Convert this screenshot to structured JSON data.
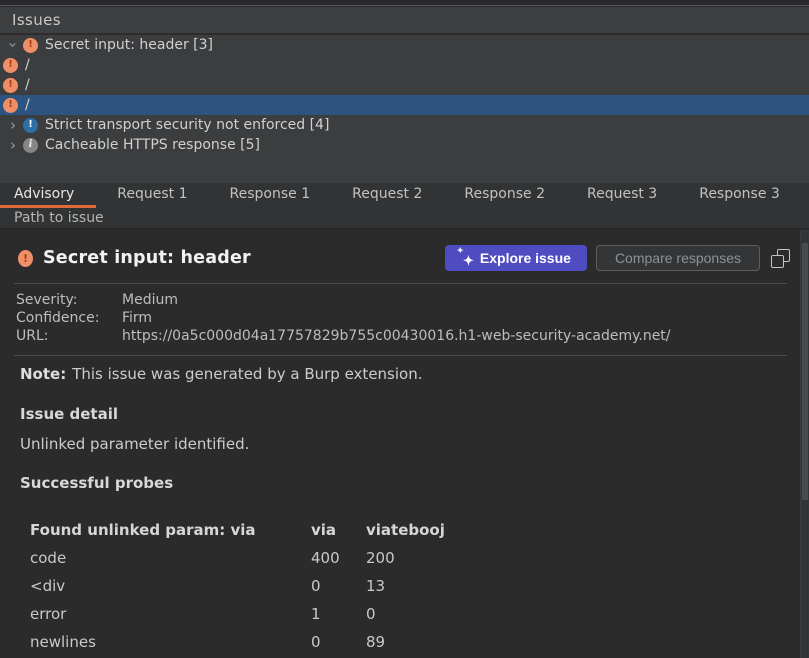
{
  "panel": {
    "title": "Issues"
  },
  "tree": {
    "items": [
      {
        "label": "Secret input: header [3]",
        "icon": "medium-severity-icon",
        "chevron": "expanded",
        "selected": false
      },
      {
        "label": "/",
        "icon": "medium-severity-icon",
        "selected": false
      },
      {
        "label": "/",
        "icon": "medium-severity-icon",
        "selected": false
      },
      {
        "label": "/",
        "icon": "medium-severity-icon",
        "selected": true
      },
      {
        "label": "Strict transport security not enforced [4]",
        "icon": "low-severity-icon",
        "chevron": "collapsed",
        "selected": false
      },
      {
        "label": "Cacheable HTTPS response [5]",
        "icon": "info-severity-icon",
        "chevron": "collapsed",
        "selected": false
      }
    ]
  },
  "tabs": {
    "row1": [
      {
        "label": "Advisory",
        "selected": true
      },
      {
        "label": "Request 1",
        "selected": false
      },
      {
        "label": "Response 1",
        "selected": false
      },
      {
        "label": "Request 2",
        "selected": false
      },
      {
        "label": "Response 2",
        "selected": false
      },
      {
        "label": "Request 3",
        "selected": false
      },
      {
        "label": "Response 3",
        "selected": false
      }
    ],
    "row2": [
      {
        "label": "Path to issue"
      }
    ]
  },
  "advisory": {
    "title": "Secret input: header",
    "explore_button": "Explore issue",
    "compare_button": "Compare responses",
    "meta": [
      {
        "label": "Severity:",
        "value": "Medium"
      },
      {
        "label": "Confidence:",
        "value": "Firm"
      },
      {
        "label": "URL:",
        "value": "https://0a5c000d04a17757829b755c00430016.h1-web-security-academy.net/"
      }
    ],
    "note_label": "Note:",
    "note_text": "This issue was generated by a Burp extension.",
    "issue_detail_heading": "Issue detail",
    "issue_detail_text": "Unlinked parameter identified.",
    "probes_heading": "Successful probes",
    "probes_table": {
      "headers": [
        "Found unlinked param: via",
        "via",
        "viatebooj"
      ],
      "rows": [
        [
          "code",
          "400",
          "200"
        ],
        [
          "<div",
          "0",
          "13"
        ],
        [
          "error",
          "1",
          "0"
        ],
        [
          "newlines",
          "0",
          "89"
        ]
      ]
    }
  },
  "colors": {
    "selection_blue": "#2d5480",
    "tab_underline_orange": "#e0693a",
    "explore_button_purple": "#4f4cc2",
    "medium_severity": "#ef8f6a",
    "low_severity": "#2f6fa7",
    "info_severity": "#868686",
    "panel_background": "#2b2b2b",
    "tree_background": "#3b3d3f"
  }
}
